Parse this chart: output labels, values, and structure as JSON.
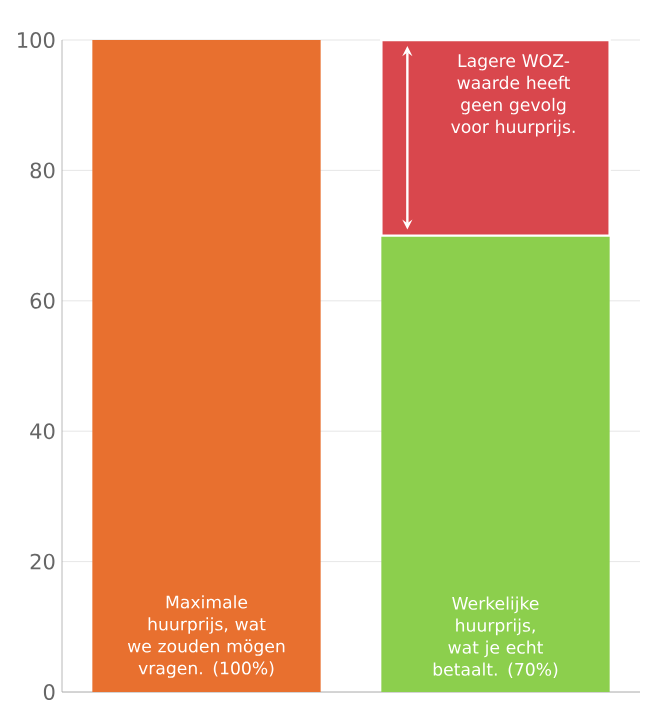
{
  "chart_data": {
    "type": "bar",
    "stacked": true,
    "categories": [
      null,
      null
    ],
    "series": [
      {
        "colors": [
          "#e8702f",
          "#8ccf4d"
        ],
        "values": [
          100,
          70
        ],
        "value_labels": [
          "Maximale huurprijs, wat we zouden mögen vragen. (100%)",
          "Werkelijke huurprijs, wat je echt betaalt. (70%)"
        ]
      },
      {
        "color": "#d9474d",
        "values": [
          null,
          30
        ],
        "value_labels": [
          null,
          "Lagere WOZ-waarde heeft geen gevolg voor huurprijs."
        ]
      }
    ],
    "ylim": [
      0,
      100
    ],
    "yticks": [
      0,
      20,
      40,
      60,
      80,
      100
    ],
    "grid": "y"
  }
}
